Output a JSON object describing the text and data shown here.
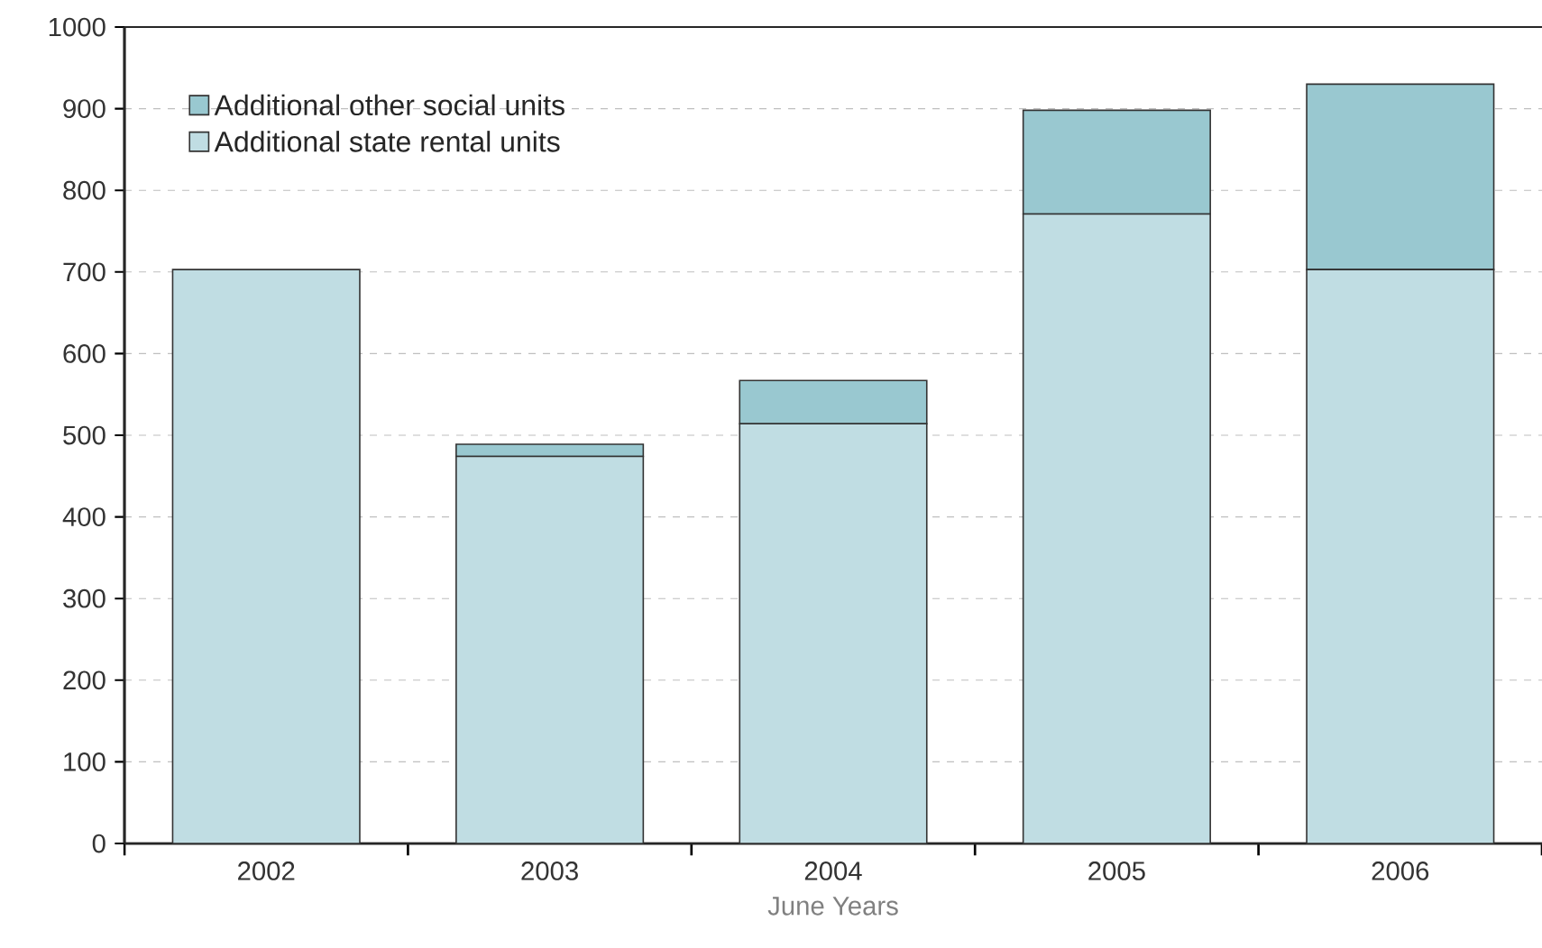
{
  "chart_data": {
    "type": "bar",
    "stacked": true,
    "xlabel": "June Years",
    "categories": [
      "2002",
      "2003",
      "2004",
      "2005",
      "2006"
    ],
    "series": [
      {
        "name": "Additional state rental units",
        "color": "#c0dde3",
        "values": [
          703,
          474,
          514,
          771,
          703
        ]
      },
      {
        "name": "Additional other social units",
        "color": "#99c8d0",
        "values": [
          0,
          15,
          53,
          127,
          227
        ]
      }
    ],
    "ylim": [
      0,
      1000
    ],
    "yticks": [
      0,
      100,
      200,
      300,
      400,
      500,
      600,
      700,
      800,
      900,
      1000
    ],
    "grid": "y",
    "legend": "top left"
  }
}
